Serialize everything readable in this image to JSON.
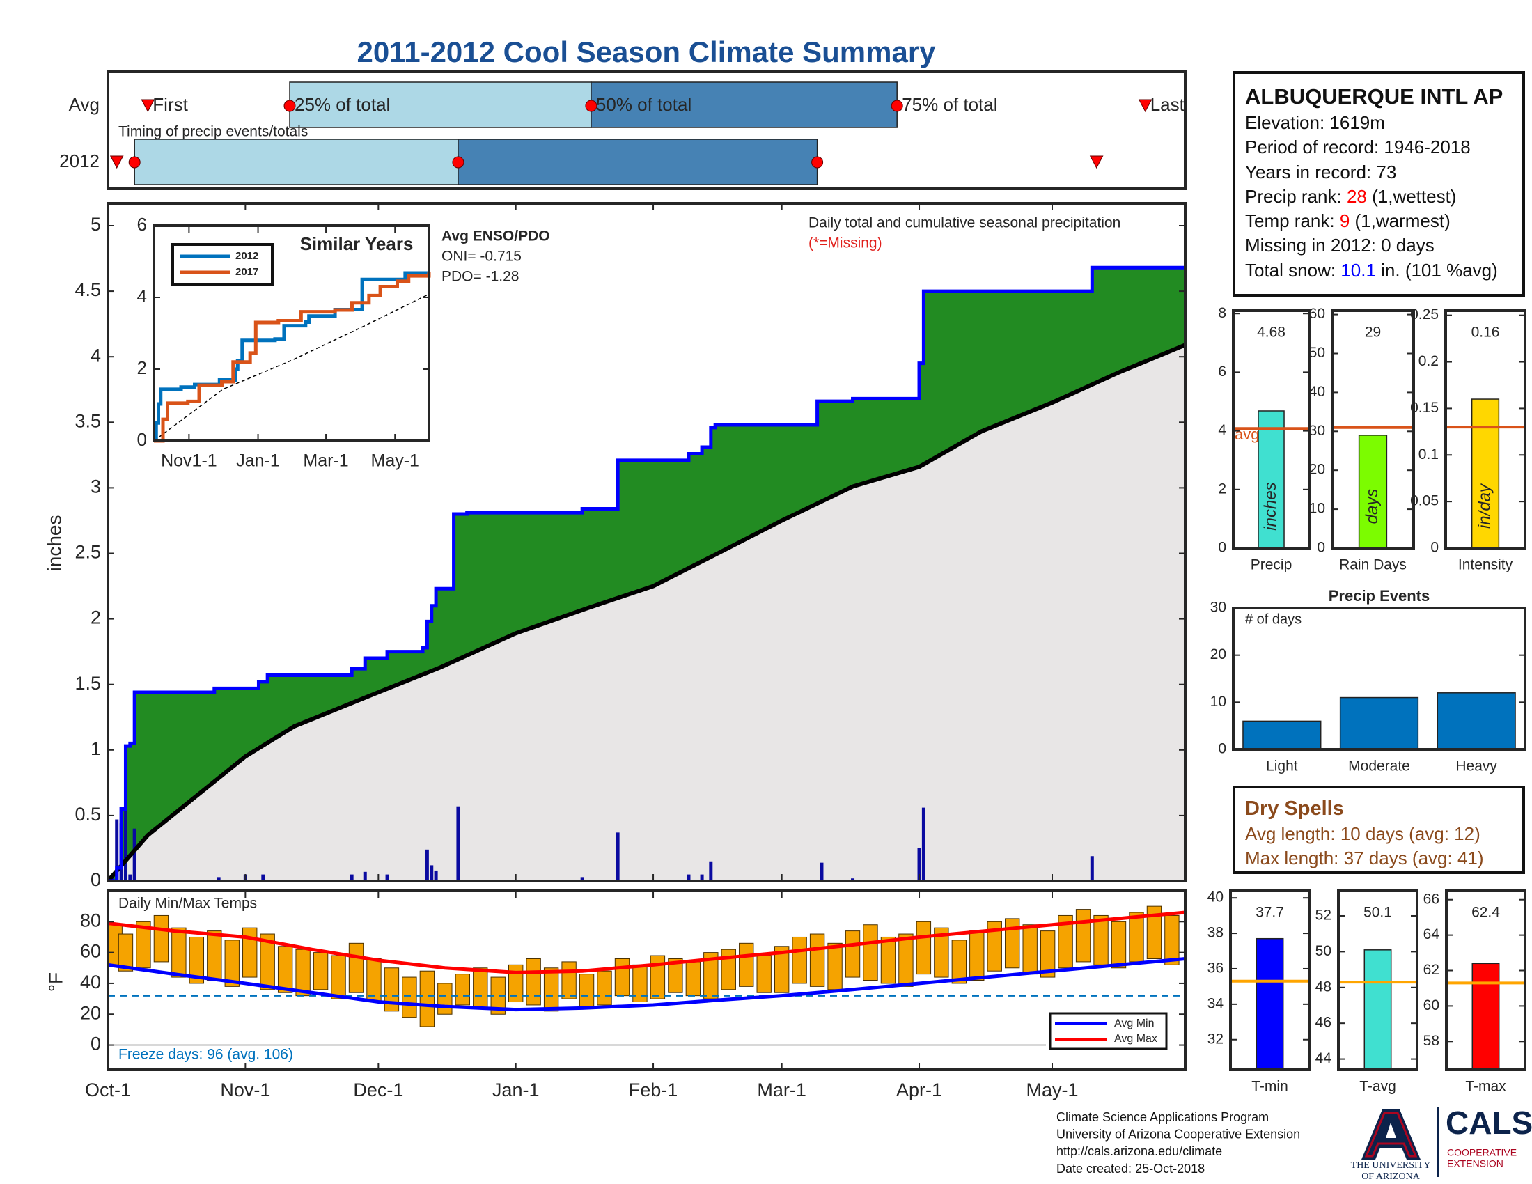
{
  "title": "2011-2012 Cool Season Climate Summary",
  "station": {
    "title": "ALBUQUERQUE INTL AP",
    "lines": [
      [
        {
          "text": "Elevation: 1619m"
        }
      ],
      [
        {
          "text": "Period of record: 1946-2018"
        }
      ],
      [
        {
          "text": "Years in record: 73"
        }
      ],
      [
        {
          "text": "Precip rank: "
        },
        {
          "text": "28",
          "color": "#ff0000"
        },
        {
          "text": " (1,wettest)"
        }
      ],
      [
        {
          "text": "Temp rank: "
        },
        {
          "text": "9",
          "color": "#ff0000"
        },
        {
          "text": " (1,warmest)"
        }
      ],
      [
        {
          "text": "Missing in 2012: 0 days"
        }
      ],
      [
        {
          "text": "Total snow: "
        },
        {
          "text": "10.1",
          "color": "#0000ff"
        },
        {
          "text": " in. (101 %avg)"
        }
      ]
    ]
  },
  "dry_spells": {
    "title": "Dry Spells",
    "lines": [
      "Avg length: 10 days (avg: 12)",
      "Max length: 37 days (avg: 41)"
    ],
    "color": "#8b4a1c"
  },
  "footer": {
    "lines": [
      "Climate Science Applications Program",
      "University of Arizona Cooperative Extension",
      "http://cals.arizona.edu/climate",
      "Date created: 25-Oct-2018"
    ],
    "university": [
      "THE UNIVERSITY",
      "OF ARIZONA"
    ],
    "cals": "CALS",
    "extension": [
      "COOPERATIVE",
      "EXTENSION"
    ]
  },
  "chart_data": [
    {
      "type": "timeline",
      "title": "Timing of precip events/totals",
      "xlim": [
        0,
        243
      ],
      "labels": [
        "First",
        "25% of total",
        "50% of total",
        "75% of total",
        "Last"
      ],
      "colors": {
        "light": "#add8e6",
        "dark": "#4682b4",
        "marker": "#ff0000"
      },
      "series": [
        {
          "name": "Avg",
          "values": [
            9,
            41,
            109,
            178,
            234
          ]
        },
        {
          "name": "2012",
          "values": [
            2,
            6,
            79,
            160,
            223
          ]
        }
      ]
    },
    {
      "type": "step",
      "title": "Daily total and cumulative seasonal precipitation",
      "note": "(*=Missing)",
      "ylabel": "inches",
      "xlim": [
        0,
        243
      ],
      "ylim": [
        0,
        5.17
      ],
      "yticks": [
        0,
        0.5,
        1,
        1.5,
        2,
        2.5,
        3,
        3.5,
        4,
        4.5,
        5
      ],
      "cumulative": {
        "color": "#0000ff",
        "x": [
          0,
          2,
          3,
          4,
          5,
          6,
          24,
          34,
          36,
          55,
          58,
          63,
          71,
          72,
          73,
          74,
          78,
          81,
          107,
          115,
          131,
          134,
          136,
          137,
          160,
          168,
          183,
          184,
          222,
          243
        ],
        "values": [
          0,
          0.1,
          0.55,
          1.03,
          1.05,
          1.44,
          1.47,
          1.52,
          1.57,
          1.62,
          1.7,
          1.75,
          1.78,
          1.98,
          2.1,
          2.23,
          2.8,
          2.81,
          2.84,
          3.21,
          3.26,
          3.31,
          3.46,
          3.48,
          3.66,
          3.68,
          3.95,
          4.5,
          4.68,
          4.68
        ]
      },
      "average": {
        "color": "#000000",
        "area_color": "#e8e6e6",
        "surplus_color": "#228b22",
        "x": [
          0,
          9,
          20,
          31,
          42,
          61,
          75,
          92,
          108,
          123,
          137,
          152,
          168,
          183,
          197,
          213,
          228,
          243
        ],
        "values": [
          0,
          0.35,
          0.65,
          0.95,
          1.18,
          1.44,
          1.63,
          1.89,
          2.08,
          2.25,
          2.49,
          2.75,
          3.01,
          3.16,
          3.43,
          3.65,
          3.88,
          4.09
        ]
      },
      "daily": {
        "color": "#0a0aa0",
        "x": [
          1,
          2,
          3,
          4,
          5,
          6,
          25,
          31,
          35,
          55,
          58,
          63,
          72,
          73,
          74,
          79,
          107,
          115,
          131,
          134,
          136,
          161,
          168,
          183,
          184,
          222
        ],
        "values": [
          0.05,
          0.47,
          0.44,
          0.55,
          0.05,
          0.4,
          0.03,
          0.05,
          0.05,
          0.05,
          0.07,
          0.05,
          0.24,
          0.12,
          0.08,
          0.57,
          0.03,
          0.37,
          0.05,
          0.05,
          0.15,
          0.14,
          0.02,
          0.25,
          0.56,
          0.19
        ]
      }
    },
    {
      "type": "line",
      "title": "Similar Years",
      "annotations": [
        "Avg ENSO/PDO",
        "ONI= -0.715",
        "PDO= -1.28"
      ],
      "xlim": [
        0,
        243
      ],
      "xticks": [
        {
          "value": 31,
          "label": "Nov1-1"
        },
        {
          "value": 92,
          "label": "Jan-1"
        },
        {
          "value": 152,
          "label": "Mar-1"
        },
        {
          "value": 213,
          "label": "May-1"
        }
      ],
      "ylim": [
        0,
        6
      ],
      "yticks": [
        0,
        2,
        4,
        6
      ],
      "series": [
        {
          "name": "2012",
          "color": "#0072bd",
          "x": [
            0,
            2,
            4,
            6,
            24,
            36,
            58,
            72,
            74,
            78,
            107,
            115,
            134,
            137,
            160,
            184,
            222,
            243
          ],
          "values": [
            0,
            0.5,
            1.03,
            1.44,
            1.5,
            1.57,
            1.7,
            2.0,
            2.23,
            2.8,
            2.84,
            3.21,
            3.31,
            3.48,
            3.66,
            4.5,
            4.68,
            4.68
          ]
        },
        {
          "name": "2017",
          "color": "#d95319",
          "x": [
            0,
            8,
            12,
            30,
            40,
            60,
            70,
            85,
            90,
            110,
            130,
            160,
            175,
            190,
            200,
            215,
            225,
            243
          ],
          "values": [
            0,
            0.6,
            1.05,
            1.1,
            1.55,
            1.65,
            2.2,
            2.45,
            3.3,
            3.35,
            3.6,
            3.65,
            3.85,
            4.05,
            4.3,
            4.45,
            4.6,
            4.7
          ]
        }
      ],
      "average": {
        "color": "#000000",
        "x": [
          0,
          61,
          122,
          183,
          243
        ],
        "values": [
          0,
          1.44,
          2.25,
          3.16,
          4.09
        ]
      }
    },
    {
      "type": "range_bar",
      "title": "Daily Min/Max Temps",
      "ylabel": "°F",
      "xlim": [
        0,
        243
      ],
      "xticks": [
        {
          "value": 0,
          "label": "Oct-1"
        },
        {
          "value": 31,
          "label": "Nov-1"
        },
        {
          "value": 61,
          "label": "Dec-1"
        },
        {
          "value": 92,
          "label": "Jan-1"
        },
        {
          "value": 123,
          "label": "Feb-1"
        },
        {
          "value": 152,
          "label": "Mar-1"
        },
        {
          "value": 183,
          "label": "Apr-1"
        },
        {
          "value": 213,
          "label": "May-1"
        }
      ],
      "ylim": [
        -16,
        100
      ],
      "yticks": [
        0,
        20,
        40,
        60,
        80
      ],
      "color": "#f5a300",
      "x": [
        0,
        4,
        8,
        12,
        16,
        20,
        24,
        28,
        32,
        36,
        40,
        44,
        48,
        52,
        56,
        60,
        64,
        68,
        72,
        76,
        80,
        84,
        88,
        92,
        96,
        100,
        104,
        108,
        112,
        116,
        120,
        124,
        128,
        132,
        136,
        140,
        144,
        148,
        152,
        156,
        160,
        164,
        168,
        172,
        176,
        180,
        184,
        188,
        192,
        196,
        200,
        204,
        208,
        212,
        216,
        220,
        224,
        228,
        232,
        236,
        240
      ],
      "max": [
        78,
        72,
        80,
        84,
        76,
        70,
        74,
        68,
        76,
        72,
        64,
        62,
        60,
        58,
        66,
        56,
        50,
        44,
        48,
        40,
        46,
        50,
        44,
        52,
        56,
        50,
        54,
        46,
        48,
        56,
        52,
        58,
        56,
        54,
        60,
        62,
        66,
        58,
        64,
        70,
        72,
        66,
        74,
        78,
        70,
        72,
        80,
        76,
        68,
        74,
        80,
        82,
        78,
        74,
        84,
        88,
        84,
        80,
        86,
        90,
        84
      ],
      "min": [
        52,
        48,
        50,
        54,
        44,
        40,
        42,
        38,
        44,
        36,
        34,
        32,
        36,
        30,
        34,
        28,
        22,
        18,
        12,
        20,
        26,
        24,
        20,
        28,
        26,
        22,
        30,
        24,
        26,
        32,
        28,
        30,
        34,
        32,
        30,
        36,
        38,
        34,
        34,
        40,
        38,
        36,
        44,
        42,
        40,
        38,
        46,
        44,
        40,
        42,
        48,
        50,
        46,
        44,
        50,
        54,
        52,
        50,
        54,
        56,
        52
      ],
      "series": [
        {
          "name": "Avg Min",
          "color": "#0000ff",
          "x": [
            0,
            15,
            31,
            46,
            61,
            76,
            92,
            107,
            123,
            137,
            152,
            168,
            183,
            198,
            213,
            228,
            243
          ],
          "values": [
            52,
            46,
            40,
            34,
            28,
            25,
            23,
            24,
            26,
            29,
            32,
            36,
            40,
            44,
            48,
            52,
            56
          ]
        },
        {
          "name": "Avg Max",
          "color": "#ff0000",
          "x": [
            0,
            15,
            31,
            46,
            61,
            76,
            92,
            107,
            123,
            137,
            152,
            168,
            183,
            198,
            213,
            228,
            243
          ],
          "values": [
            79,
            74,
            70,
            62,
            55,
            50,
            47,
            48,
            52,
            56,
            60,
            65,
            70,
            74,
            78,
            82,
            86
          ]
        }
      ],
      "freeze": 32,
      "freeze_color": "#0072bd",
      "freeze_label": "Freeze days: 96 (avg. 106)"
    },
    {
      "type": "bar",
      "categories": [
        "Precip"
      ],
      "values": [
        4.68
      ],
      "show_values": true,
      "unit": "inches",
      "avg": 4.08,
      "avg_label": "avg",
      "avg_color": "#d95319",
      "ylim": [
        0,
        8.1
      ],
      "yticks": [
        0,
        2,
        4,
        6,
        8
      ],
      "color": "#40e0d0"
    },
    {
      "type": "bar",
      "categories": [
        "Rain Days"
      ],
      "values": [
        29
      ],
      "show_values": true,
      "unit": "days",
      "avg": 31,
      "avg_color": "#d95319",
      "ylim": [
        0,
        61
      ],
      "yticks": [
        0,
        10,
        20,
        30,
        40,
        50,
        60
      ],
      "color": "#7cfc00"
    },
    {
      "type": "bar",
      "categories": [
        "Intensity"
      ],
      "values": [
        0.16
      ],
      "show_values": true,
      "unit": "in/day",
      "avg": 0.13,
      "avg_color": "#d95319",
      "ylim": [
        0,
        0.255
      ],
      "yticks": [
        0,
        0.05,
        0.1,
        0.15,
        0.2,
        0.25
      ],
      "color": "#ffd700"
    },
    {
      "type": "bar",
      "title": "Precip Events",
      "ylabel": "# of days",
      "categories": [
        "Light",
        "Moderate",
        "Heavy"
      ],
      "values": [
        6,
        11,
        12
      ],
      "ylim": [
        0,
        30
      ],
      "yticks": [
        0,
        10,
        20,
        30
      ],
      "color": "#0072bd"
    },
    {
      "type": "bar",
      "categories": [
        "T-min"
      ],
      "values": [
        37.7
      ],
      "show_values": true,
      "avg": 35.3,
      "avg_color": "#ffa500",
      "ylim": [
        30.3,
        40.4
      ],
      "yticks": [
        32,
        34,
        36,
        38,
        40
      ],
      "color": "#0000ff"
    },
    {
      "type": "bar",
      "categories": [
        "T-avg"
      ],
      "values": [
        50.1
      ],
      "show_values": true,
      "avg": 48.3,
      "avg_color": "#ffa500",
      "ylim": [
        43.4,
        53.4
      ],
      "yticks": [
        44,
        46,
        48,
        50,
        52
      ],
      "color": "#40e0d0"
    },
    {
      "type": "bar",
      "categories": [
        "T-max"
      ],
      "values": [
        62.4
      ],
      "show_values": true,
      "avg": 61.3,
      "avg_color": "#ffa500",
      "ylim": [
        56.4,
        66.5
      ],
      "yticks": [
        58,
        60,
        62,
        64,
        66
      ],
      "color": "#ff0000"
    }
  ]
}
